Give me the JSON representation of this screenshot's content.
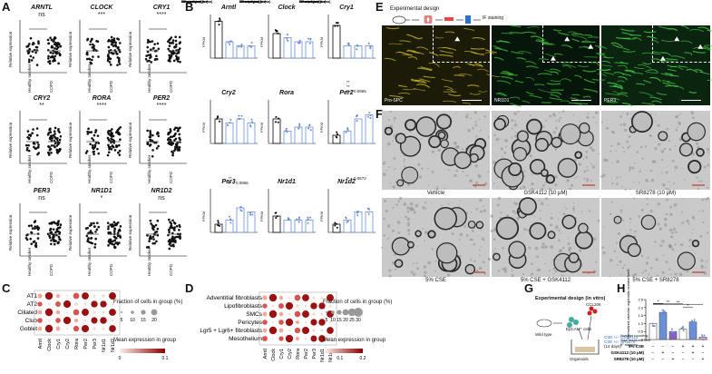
{
  "panels": {
    "A": "A",
    "B": "B",
    "C": "C",
    "D": "D",
    "E": "E",
    "F": "F",
    "G": "G",
    "H": "H"
  },
  "A": {
    "plots": [
      {
        "title": "ARNTL",
        "sig": "ns",
        "ylabel": "Relative expression",
        "groups": [
          "Healthy smoker",
          "COPD"
        ]
      },
      {
        "title": "CLOCK",
        "sig": "***",
        "ylabel": "Relative expression",
        "groups": [
          "Healthy smoker",
          "COPD"
        ]
      },
      {
        "title": "CRY1",
        "sig": "****",
        "ylabel": "Relative expression",
        "groups": [
          "Healthy smoker",
          "COPD"
        ]
      },
      {
        "title": "CRY2",
        "sig": "**",
        "ylabel": "Relative expression",
        "groups": [
          "Healthy smoker",
          "COPD"
        ]
      },
      {
        "title": "RORA",
        "sig": "****",
        "ylabel": "Relative expression",
        "groups": [
          "Healthy smoker",
          "COPD"
        ]
      },
      {
        "title": "PER2",
        "sig": "****",
        "ylabel": "Relative expression",
        "groups": [
          "Healthy smoker",
          "COPD"
        ]
      },
      {
        "title": "PER3",
        "sig": "ns",
        "ylabel": "Relative expression",
        "groups": [
          "Healthy smoker",
          "COPD"
        ]
      },
      {
        "title": "NR1D1",
        "sig": "*",
        "ylabel": "Relative expression",
        "groups": [
          "Healthy smoker",
          "COPD"
        ]
      },
      {
        "title": "NR1D2",
        "sig": "ns",
        "ylabel": "Relative expression",
        "groups": [
          "Healthy smoker",
          "COPD"
        ]
      }
    ]
  },
  "B": {
    "ylabel": "FPKM",
    "rows": [
      "CS exposure (in vivo)",
      "Mesenchymal (co)",
      "Secreted (co)"
    ],
    "plots": [
      {
        "title": "Arntl"
      },
      {
        "title": "Clock"
      },
      {
        "title": "Cry1"
      },
      {
        "title": "Cry2"
      },
      {
        "title": "Rora"
      },
      {
        "title": "Per2",
        "notes": [
          "**",
          "**",
          "P = 0.0865"
        ]
      },
      {
        "title": "Per3",
        "notes": [
          "**",
          "P = 0.0865"
        ]
      },
      {
        "title": "Nr1d1"
      },
      {
        "title": "Nr1d2",
        "notes": [
          "P = 0.0572"
        ]
      }
    ]
  },
  "C": {
    "rows": [
      "AT1",
      "AT2",
      "Ciliated",
      "Club",
      "Goblet"
    ],
    "cols": [
      "Arntl",
      "Clock",
      "Cry1",
      "Cry2",
      "Rora",
      "Per2",
      "Per3",
      "Nr1d1",
      "Nr1d2"
    ],
    "legend_size_title": "Fraction of cells in group (%)",
    "legend_sizes": [
      "5",
      "10",
      "15",
      "20"
    ],
    "legend_color_title": "Mean expression in group",
    "legend_color_ticks": [
      "0",
      "0.1"
    ]
  },
  "D": {
    "rows": [
      "Adventitial fibroblasts",
      "Lipofibroblasts",
      "SMCs",
      "Pericytes",
      "Lgr5 + Lgr6+ fibroblasts",
      "Mesothelium"
    ],
    "cols": [
      "Arntl",
      "Clock",
      "Cry1",
      "Cry2",
      "Rora",
      "Per2",
      "Per3",
      "Nr1d1",
      "Nr1d2"
    ],
    "legend_size_title": "Fraction of cells in group (%)",
    "legend_sizes": [
      "5",
      "10",
      "15",
      "20",
      "25",
      "30"
    ],
    "legend_color_title": "Mean expression in group",
    "legend_color_ticks": [
      "0.1",
      "0.2"
    ]
  },
  "E": {
    "design_label": "Experimental design",
    "staining_label": "IF staining",
    "images": [
      "Pro-SPC",
      "NR1D1",
      "PER3"
    ]
  },
  "F": {
    "images": [
      "Vehicle",
      "GSK4112 (10 μM)",
      "SR8278 (10 μM)",
      "5% CSE",
      "5% CSE + GSK4112",
      "5% CSE + SR8278"
    ]
  },
  "G": {
    "title": "Experimental design (in vitro)",
    "mouse": "Wild type",
    "cells": "EpCAM⁺ cells",
    "fibro": "CCL206",
    "treatment1": "CSE +/− GSK4112",
    "treatment2": "CSE +/− SR8278",
    "days": "(14 days)",
    "organoids": "Organoids",
    "readouts": [
      "Number counting",
      "Size measurement",
      "IF staining"
    ]
  },
  "H": {
    "ylabel": "Normalized alveolar organoids number/well",
    "rows": [
      "5% CSE",
      "GSK4112 (10 μM)",
      "SR8278 (10 μM)"
    ],
    "signs": [
      [
        "−",
        "−",
        "−",
        "+",
        "+",
        "+"
      ],
      [
        "−",
        "+",
        "−",
        "−",
        "+",
        "−"
      ],
      [
        "−",
        "−",
        "+",
        "−",
        "−",
        "+"
      ]
    ],
    "ticks": [
      "0",
      "0.5",
      "1.0",
      "1.5",
      "2.0",
      "2.5"
    ],
    "sigs": [
      "**",
      "**",
      "*",
      "*"
    ]
  },
  "chart_data": [
    {
      "type": "bar",
      "title": "Normalized alveolar organoids",
      "categories": [
        "Vehicle",
        "GSK4112",
        "SR8278",
        "5% CSE",
        "5% CSE + GSK4112",
        "5% CSE + SR8278"
      ],
      "values": [
        1.0,
        1.7,
        0.5,
        0.65,
        1.1,
        0.15
      ],
      "ylim": [
        0,
        2.5
      ],
      "colors": [
        "#ffffff",
        "#6a8fd8",
        "#8b5fc7",
        "#ffffff",
        "#6a8fd8",
        "#e7a3c4"
      ]
    }
  ]
}
